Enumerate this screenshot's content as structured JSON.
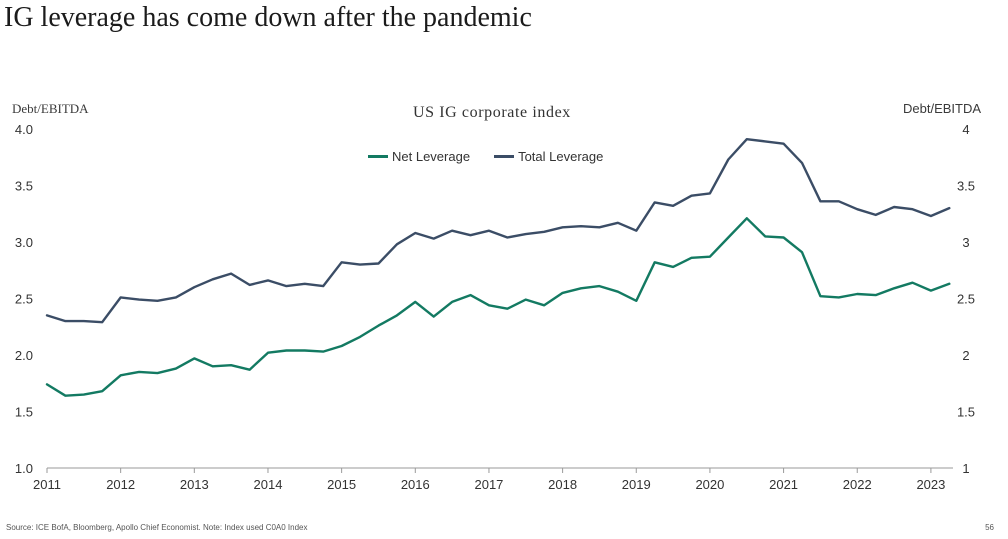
{
  "page": {
    "title": "IG leverage has come down after the pandemic",
    "footer": "Source: ICE BofA, Bloomberg, Apollo Chief Economist. Note: Index used C0A0 Index",
    "page_number": "56"
  },
  "chart_data": {
    "type": "line",
    "title": "US IG corporate index",
    "ylabel_left": "Debt/EBITDA",
    "ylabel_right": "Debt/EBITDA",
    "xlim": [
      2011,
      2023.3
    ],
    "ylim": [
      1.0,
      4.0
    ],
    "x_ticks": [
      "2011",
      "2012",
      "2013",
      "2014",
      "2015",
      "2016",
      "2017",
      "2018",
      "2019",
      "2020",
      "2021",
      "2022",
      "2023"
    ],
    "y_ticks_left": [
      "1.0",
      "1.5",
      "2.0",
      "2.5",
      "3.0",
      "3.5",
      "4.0"
    ],
    "y_ticks_right": [
      "1",
      "1.5",
      "2",
      "2.5",
      "3",
      "3.5",
      "4"
    ],
    "grid": false,
    "legend_position": "top-center",
    "x": [
      2011.0,
      2011.25,
      2011.5,
      2011.75,
      2012.0,
      2012.25,
      2012.5,
      2012.75,
      2013.0,
      2013.25,
      2013.5,
      2013.75,
      2014.0,
      2014.25,
      2014.5,
      2014.75,
      2015.0,
      2015.25,
      2015.5,
      2015.75,
      2016.0,
      2016.25,
      2016.5,
      2016.75,
      2017.0,
      2017.25,
      2017.5,
      2017.75,
      2018.0,
      2018.25,
      2018.5,
      2018.75,
      2019.0,
      2019.25,
      2019.5,
      2019.75,
      2020.0,
      2020.25,
      2020.5,
      2020.75,
      2021.0,
      2021.25,
      2021.5,
      2021.75,
      2022.0,
      2022.25,
      2022.5,
      2022.75,
      2023.0,
      2023.25
    ],
    "series": [
      {
        "name": "Net Leverage",
        "color": "#137a62",
        "values": [
          1.74,
          1.64,
          1.65,
          1.68,
          1.82,
          1.85,
          1.84,
          1.88,
          1.97,
          1.9,
          1.91,
          1.87,
          2.02,
          2.04,
          2.04,
          2.03,
          2.08,
          2.16,
          2.26,
          2.35,
          2.47,
          2.34,
          2.47,
          2.53,
          2.44,
          2.41,
          2.49,
          2.44,
          2.55,
          2.59,
          2.61,
          2.56,
          2.48,
          2.82,
          2.78,
          2.86,
          2.87,
          3.04,
          3.21,
          3.05,
          3.04,
          2.91,
          2.52,
          2.51,
          2.54,
          2.53,
          2.59,
          2.64,
          2.57,
          2.63
        ]
      },
      {
        "name": "Total Leverage",
        "color": "#3b4d66",
        "values": [
          2.35,
          2.3,
          2.3,
          2.29,
          2.51,
          2.49,
          2.48,
          2.51,
          2.6,
          2.67,
          2.72,
          2.62,
          2.66,
          2.61,
          2.63,
          2.61,
          2.82,
          2.8,
          2.81,
          2.98,
          3.08,
          3.03,
          3.1,
          3.06,
          3.1,
          3.04,
          3.07,
          3.09,
          3.13,
          3.14,
          3.13,
          3.17,
          3.1,
          3.35,
          3.32,
          3.41,
          3.43,
          3.73,
          3.91,
          3.89,
          3.87,
          3.7,
          3.36,
          3.36,
          3.29,
          3.24,
          3.31,
          3.29,
          3.23,
          3.3
        ]
      }
    ]
  }
}
